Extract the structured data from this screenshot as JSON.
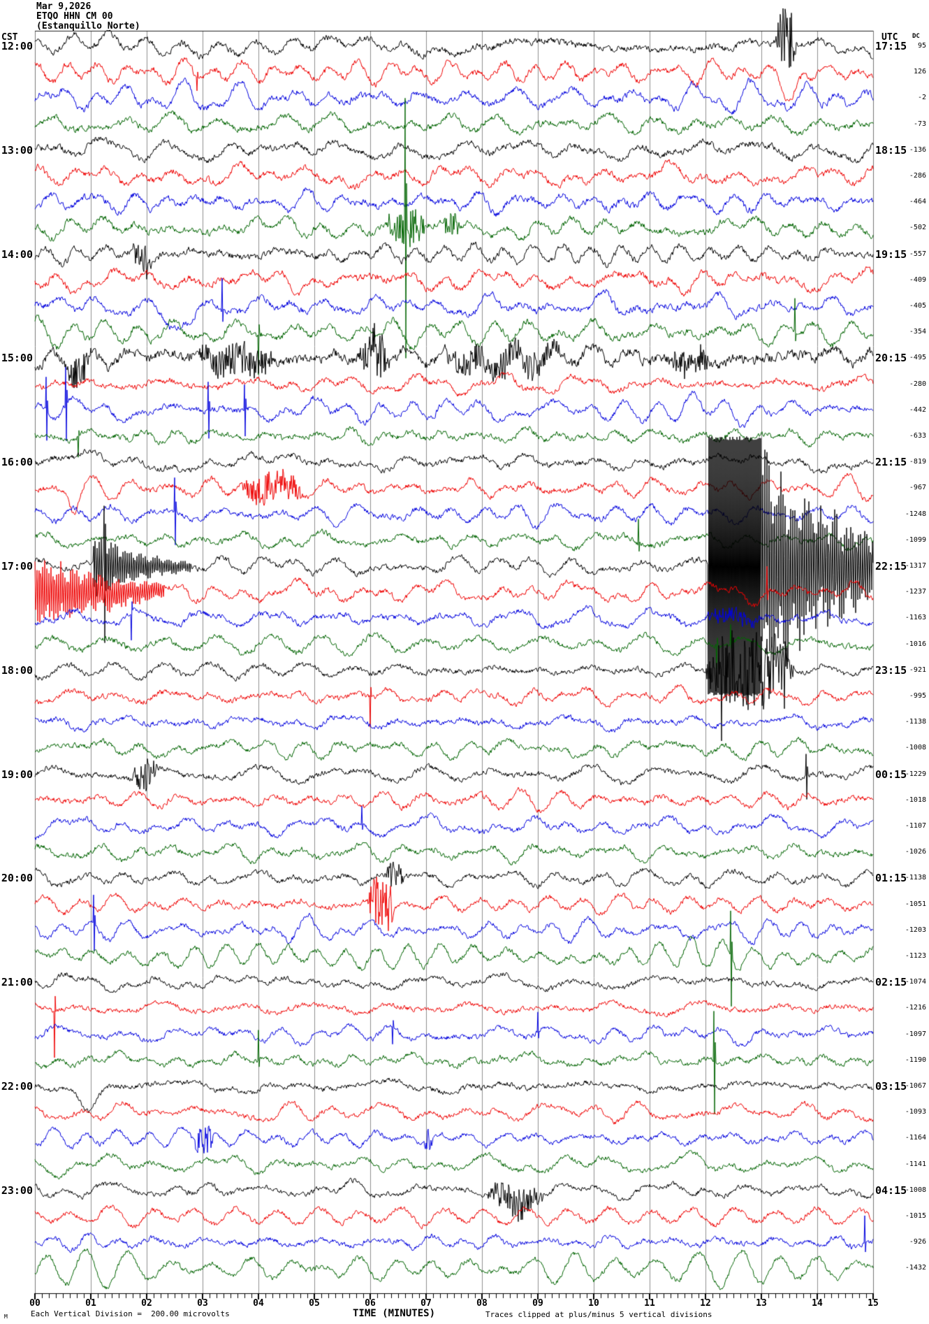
{
  "header": {
    "date": "Mar 9,2026",
    "station": "ETQO HHN CM 00",
    "station_name": "(Estanquillo Norte)"
  },
  "corner_labels": {
    "left_tz": "CST",
    "right_tz": "UTC",
    "dc": "DC"
  },
  "x_axis": {
    "title": "TIME (MINUTES)",
    "tick_labels": [
      "00",
      "01",
      "02",
      "03",
      "04",
      "05",
      "06",
      "07",
      "08",
      "09",
      "10",
      "11",
      "12",
      "13",
      "14",
      "15"
    ],
    "scale_note": "Each Vertical Division =  200.00 microvolts",
    "clip_note": "Traces clipped at plus/minus 5 vertical divisions",
    "corner_mark": "M"
  },
  "chart_data": {
    "type": "line",
    "subtype": "helicorder-seismogram",
    "title": "ETQO HHN CM 00 (Estanquillo Norte) Mar 9,2026",
    "minutes_per_row": 15,
    "rows_per_hour": 4,
    "clip_divisions": 5,
    "microvolts_per_division": 200.0,
    "colors_cycle": [
      "#000000",
      "#ee0000",
      "#0000dd",
      "#006400"
    ],
    "grid_color": "#8f8f8f",
    "border_color": "#555555",
    "x_range_minutes": [
      0,
      15
    ],
    "rows": [
      {
        "cst": "12:00",
        "utc": "17:15",
        "dc": "95",
        "color": 0,
        "events": [
          {
            "type": "burst",
            "m0": 13.25,
            "m1": 13.65,
            "amp": 45
          }
        ]
      },
      {
        "cst": null,
        "utc": null,
        "dc": "126",
        "color": 1,
        "events": [
          {
            "type": "dip",
            "m": 13.5,
            "w": 0.25,
            "amp": 38
          },
          {
            "type": "spike",
            "m": 2.9,
            "amp": -20
          }
        ]
      },
      {
        "cst": null,
        "utc": null,
        "dc": "-2",
        "color": 2,
        "events": []
      },
      {
        "cst": null,
        "utc": null,
        "dc": "-73",
        "color": 3,
        "events": []
      },
      {
        "cst": "13:00",
        "utc": "18:15",
        "dc": "-136",
        "color": 0,
        "events": []
      },
      {
        "cst": null,
        "utc": null,
        "dc": "-286",
        "color": 1,
        "events": []
      },
      {
        "cst": null,
        "utc": null,
        "dc": "-464",
        "color": 2,
        "events": []
      },
      {
        "cst": null,
        "utc": null,
        "dc": "-502",
        "color": 3,
        "events": [
          {
            "type": "burst",
            "m0": 6.3,
            "m1": 7.0,
            "amp": 28
          },
          {
            "type": "bispike",
            "m": 6.62,
            "amp": 186
          },
          {
            "type": "burst",
            "m0": 7.3,
            "m1": 7.6,
            "amp": 20
          }
        ]
      },
      {
        "cst": "14:00",
        "utc": "19:15",
        "dc": "-557",
        "color": 0,
        "events": [
          {
            "type": "burst",
            "m0": 1.75,
            "m1": 2.1,
            "amp": 30
          }
        ]
      },
      {
        "cst": null,
        "utc": null,
        "dc": "-409",
        "color": 1,
        "events": []
      },
      {
        "cst": null,
        "utc": null,
        "dc": "-405",
        "color": 2,
        "events": [
          {
            "type": "dip",
            "m": 2.5,
            "w": 0.35,
            "amp": 40
          },
          {
            "type": "spike",
            "m": 3.35,
            "amp": 45
          }
        ]
      },
      {
        "cst": null,
        "utc": null,
        "dc": "-354",
        "color": 3,
        "events": [
          {
            "type": "spike",
            "m": 4.0,
            "amp": -55
          },
          {
            "type": "spike",
            "m": 13.6,
            "amp": 45
          }
        ]
      },
      {
        "cst": "15:00",
        "utc": "20:15",
        "dc": "-495",
        "color": 0,
        "events": [
          {
            "type": "hf",
            "amp": 1.8
          },
          {
            "type": "burst",
            "m0": 0.6,
            "m1": 1.05,
            "amp": 26,
            "bias": -10
          },
          {
            "type": "burst",
            "m0": 2.9,
            "m1": 4.3,
            "amp": 24
          },
          {
            "type": "burst",
            "m0": 5.8,
            "m1": 6.35,
            "amp": 36
          },
          {
            "type": "burst",
            "m0": 7.3,
            "m1": 9.4,
            "amp": 22
          },
          {
            "type": "burst",
            "m0": 11.3,
            "m1": 12.1,
            "amp": 20
          }
        ]
      },
      {
        "cst": null,
        "utc": null,
        "dc": "-280",
        "color": 1,
        "events": []
      },
      {
        "cst": null,
        "utc": null,
        "dc": "-442",
        "color": 2,
        "events": [
          {
            "type": "bispike",
            "m": 0.2,
            "amp": 45
          },
          {
            "type": "bispike",
            "m": 0.55,
            "amp": 55
          },
          {
            "type": "bispike",
            "m": 3.1,
            "amp": 42
          },
          {
            "type": "bispike",
            "m": 3.75,
            "amp": 38
          },
          {
            "type": "wander",
            "amp": 1.4
          }
        ]
      },
      {
        "cst": null,
        "utc": null,
        "dc": "-633",
        "color": 3,
        "events": [
          {
            "type": "spike",
            "m": 0.78,
            "amp": -28
          }
        ]
      },
      {
        "cst": "16:00",
        "utc": "21:15",
        "dc": "-819",
        "color": 0,
        "events": []
      },
      {
        "cst": null,
        "utc": null,
        "dc": "-967",
        "color": 1,
        "events": [
          {
            "type": "dip",
            "m": 0.7,
            "w": 0.15,
            "amp": 28
          },
          {
            "type": "burst",
            "m0": 3.7,
            "m1": 4.8,
            "amp": 22
          }
        ]
      },
      {
        "cst": null,
        "utc": null,
        "dc": "-1248",
        "color": 2,
        "events": [
          {
            "type": "bispike",
            "m": 2.5,
            "amp": 48
          }
        ]
      },
      {
        "cst": null,
        "utc": null,
        "dc": "-1099",
        "color": 3,
        "events": [
          {
            "type": "spike",
            "m": 10.8,
            "amp": 36
          }
        ]
      },
      {
        "cst": "17:00",
        "utc": "22:15",
        "dc": "-1317",
        "color": 0,
        "events": [
          {
            "type": "coda",
            "m0": 1.05,
            "m1": 2.8,
            "amp0": 55,
            "amp1": 8
          },
          {
            "type": "bispike",
            "m": 1.24,
            "amp": 115
          },
          {
            "type": "clip",
            "m0": 12.05,
            "m1": 13.0
          },
          {
            "type": "coda",
            "m0": 13.0,
            "m1": 15.0,
            "amp0": 186,
            "amp1": 55
          }
        ]
      },
      {
        "cst": null,
        "utc": null,
        "dc": "-1237",
        "color": 1,
        "events": [
          {
            "type": "coda",
            "m0": 0.0,
            "m1": 2.3,
            "amp0": 60,
            "amp1": 14
          },
          {
            "type": "spike",
            "m": 13.1,
            "amp": 40
          }
        ]
      },
      {
        "cst": null,
        "utc": null,
        "dc": "-1163",
        "color": 2,
        "events": [
          {
            "type": "spike",
            "m": 1.72,
            "amp": -42
          },
          {
            "type": "burst",
            "m0": 12.0,
            "m1": 13.0,
            "amp": 12
          }
        ]
      },
      {
        "cst": null,
        "utc": null,
        "dc": "-1016",
        "color": 3,
        "events": [
          {
            "type": "spike",
            "m": 12.2,
            "amp": -36
          },
          {
            "type": "spike",
            "m": 12.45,
            "amp": 28
          }
        ]
      },
      {
        "cst": "18:00",
        "utc": "23:15",
        "dc": "-921",
        "color": 0,
        "events": [
          {
            "type": "burst",
            "m0": 12.0,
            "m1": 13.6,
            "amp": 62,
            "spiky": true
          }
        ]
      },
      {
        "cst": null,
        "utc": null,
        "dc": "-995",
        "color": 1,
        "events": [
          {
            "type": "spike",
            "m": 6.0,
            "amp": -46
          }
        ]
      },
      {
        "cst": null,
        "utc": null,
        "dc": "-1138",
        "color": 2,
        "events": []
      },
      {
        "cst": null,
        "utc": null,
        "dc": "-1008",
        "color": 3,
        "events": []
      },
      {
        "cst": "19:00",
        "utc": "00:15",
        "dc": "-1229",
        "color": 0,
        "events": [
          {
            "type": "burst",
            "m0": 1.75,
            "m1": 2.2,
            "amp": 26
          },
          {
            "type": "bispike",
            "m": 13.8,
            "amp": 34
          }
        ]
      },
      {
        "cst": null,
        "utc": null,
        "dc": "-1018",
        "color": 1,
        "events": []
      },
      {
        "cst": null,
        "utc": null,
        "dc": "-1107",
        "color": 2,
        "events": [
          {
            "type": "spike",
            "m": 5.85,
            "amp": 26
          }
        ]
      },
      {
        "cst": null,
        "utc": null,
        "dc": "-1026",
        "color": 3,
        "events": []
      },
      {
        "cst": "20:00",
        "utc": "01:15",
        "dc": "-1138",
        "color": 0,
        "events": [
          {
            "type": "burst",
            "m0": 6.25,
            "m1": 6.6,
            "amp": 24
          }
        ]
      },
      {
        "cst": null,
        "utc": null,
        "dc": "-1051",
        "color": 1,
        "events": [
          {
            "type": "burst",
            "m0": 5.95,
            "m1": 6.45,
            "amp": 40
          }
        ]
      },
      {
        "cst": null,
        "utc": null,
        "dc": "-1203",
        "color": 2,
        "events": [
          {
            "type": "bispike",
            "m": 1.05,
            "amp": 38
          }
        ]
      },
      {
        "cst": null,
        "utc": null,
        "dc": "-1123",
        "color": 3,
        "events": [
          {
            "type": "bispike",
            "m": 12.45,
            "amp": 68
          }
        ]
      },
      {
        "cst": "21:00",
        "utc": "02:15",
        "dc": "-1074",
        "color": 0,
        "events": []
      },
      {
        "cst": null,
        "utc": null,
        "dc": "-1216",
        "color": 1,
        "events": [
          {
            "type": "spike",
            "m": 0.35,
            "amp": -68
          }
        ]
      },
      {
        "cst": null,
        "utc": null,
        "dc": "-1097",
        "color": 2,
        "events": [
          {
            "type": "spike",
            "m": 9.0,
            "amp": 30
          },
          {
            "type": "spike",
            "m": 6.4,
            "amp": -26
          }
        ]
      },
      {
        "cst": null,
        "utc": null,
        "dc": "-1190",
        "color": 3,
        "events": [
          {
            "type": "spike",
            "m": 4.0,
            "amp": 40
          },
          {
            "type": "bispike",
            "m": 12.15,
            "amp": 75
          }
        ]
      },
      {
        "cst": "22:00",
        "utc": "03:15",
        "dc": "-1067",
        "color": 0,
        "events": [
          {
            "type": "dip",
            "m": 0.95,
            "w": 0.3,
            "amp": 32
          }
        ]
      },
      {
        "cst": null,
        "utc": null,
        "dc": "-1093",
        "color": 1,
        "events": []
      },
      {
        "cst": null,
        "utc": null,
        "dc": "-1164",
        "color": 2,
        "events": [
          {
            "type": "burst",
            "m0": 2.85,
            "m1": 3.2,
            "amp": 30
          },
          {
            "type": "burst",
            "m0": 6.95,
            "m1": 7.15,
            "amp": 20
          }
        ]
      },
      {
        "cst": null,
        "utc": null,
        "dc": "-1141",
        "color": 3,
        "events": []
      },
      {
        "cst": "23:00",
        "utc": "04:15",
        "dc": "-1008",
        "color": 0,
        "events": [
          {
            "type": "burst",
            "m0": 8.1,
            "m1": 9.1,
            "amp": 24,
            "bias": -16
          }
        ]
      },
      {
        "cst": null,
        "utc": null,
        "dc": "-1015",
        "color": 1,
        "events": []
      },
      {
        "cst": null,
        "utc": null,
        "dc": "-926",
        "color": 2,
        "events": [
          {
            "type": "spike",
            "m": 14.85,
            "amp": 38
          }
        ]
      },
      {
        "cst": null,
        "utc": null,
        "dc": "-1432",
        "color": 3,
        "events": [
          {
            "type": "wander",
            "amp": 1.6
          }
        ]
      }
    ]
  }
}
